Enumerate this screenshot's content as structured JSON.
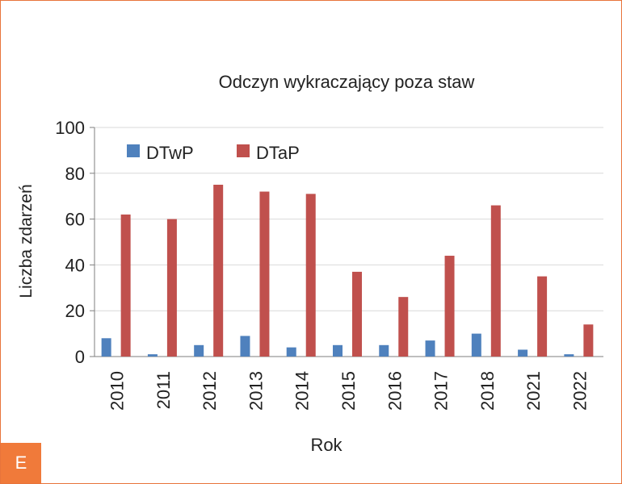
{
  "panel_label": "E",
  "colors": {
    "DTwP": "#4f81bd",
    "DTaP": "#c0504d",
    "frame": "#e8743b",
    "grid": "#d9d9d9",
    "axis": "#7f7f7f"
  },
  "chart_data": {
    "type": "bar",
    "title": "Odczyn wykraczający poza staw",
    "xlabel": "Rok",
    "ylabel": "Liczba zdarzeń",
    "ylim": [
      0,
      100
    ],
    "yticks": [
      0,
      20,
      40,
      60,
      80,
      100
    ],
    "grid": true,
    "legend": "top-left",
    "categories": [
      "2010",
      "2011",
      "2012",
      "2013",
      "2014",
      "2015",
      "2016",
      "2017",
      "2018",
      "2021",
      "2022"
    ],
    "series": [
      {
        "name": "DTwP",
        "values": [
          8,
          1,
          5,
          9,
          4,
          5,
          5,
          7,
          10,
          3,
          1
        ]
      },
      {
        "name": "DTaP",
        "values": [
          62,
          60,
          75,
          72,
          71,
          37,
          26,
          44,
          66,
          35,
          14
        ]
      }
    ]
  }
}
